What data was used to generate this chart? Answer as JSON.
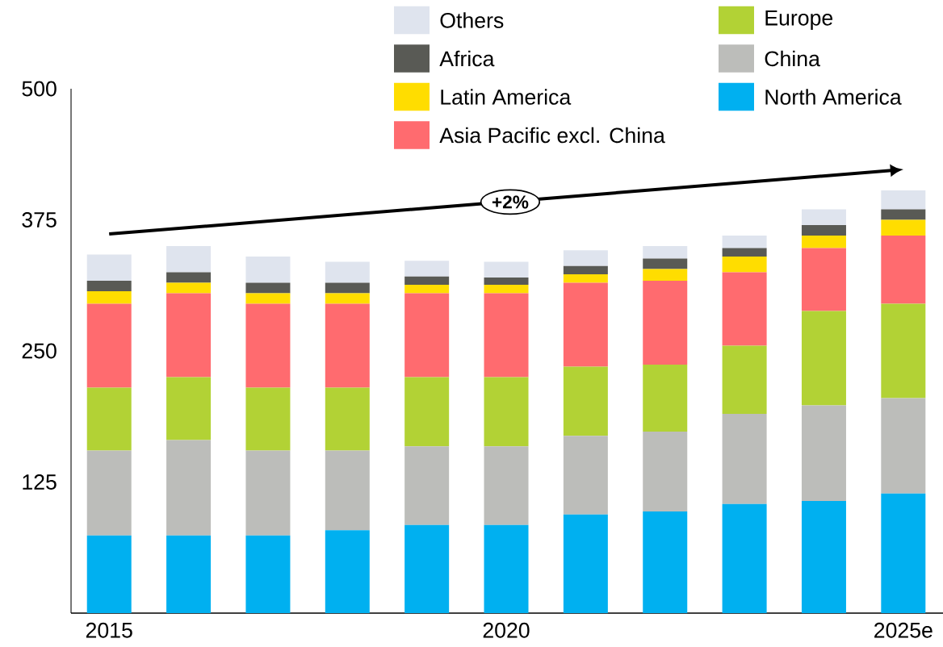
{
  "chart_data": {
    "type": "bar",
    "stacked": true,
    "categories": [
      "2015",
      null,
      null,
      null,
      null,
      "2020",
      null,
      null,
      null,
      null,
      "2025e"
    ],
    "series": [
      {
        "name": "North America",
        "color": "#00b0f0",
        "values": [
          74,
          74,
          74,
          79,
          84,
          84,
          94,
          97,
          104,
          107,
          114
        ]
      },
      {
        "name": "China",
        "color": "#bcbdba",
        "values": [
          81,
          91,
          81,
          76,
          75,
          75,
          75,
          76,
          86,
          91,
          91
        ]
      },
      {
        "name": "Europe",
        "color": "#b2d235",
        "values": [
          60,
          60,
          60,
          60,
          66,
          66,
          66,
          64,
          65,
          90,
          90
        ]
      },
      {
        "name": "Asia Pacific excl. China",
        "color": "#ff6b6f",
        "values": [
          80,
          80,
          80,
          80,
          80,
          80,
          80,
          80,
          70,
          60,
          65
        ]
      },
      {
        "name": "Latin America",
        "color": "#ffdd00",
        "values": [
          12,
          10,
          10,
          10,
          8,
          8,
          8,
          11,
          15,
          12,
          15
        ]
      },
      {
        "name": "Africa",
        "color": "#595a55",
        "values": [
          10,
          10,
          10,
          10,
          8,
          7,
          8,
          10,
          8,
          10,
          10
        ]
      },
      {
        "name": "Others",
        "color": "#dfe4ee",
        "values": [
          25,
          25,
          25,
          20,
          15,
          15,
          15,
          12,
          12,
          15,
          18
        ]
      }
    ],
    "ylim": [
      0,
      500
    ],
    "yticks": [
      125,
      250,
      375,
      500
    ],
    "annotations": [
      "+2%"
    ],
    "legend": "top right"
  }
}
